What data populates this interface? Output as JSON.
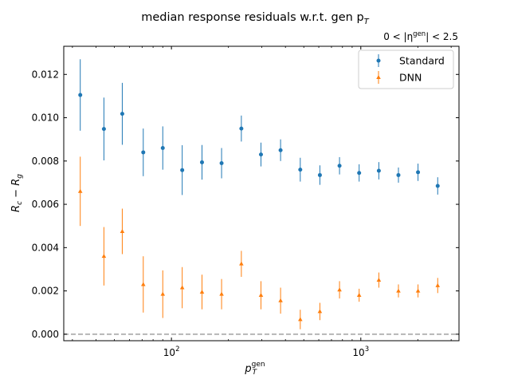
{
  "chart_data": {
    "type": "scatter",
    "title": "median response residuals w.r.t. gen p",
    "title_subscript": "T",
    "eta_range_label": {
      "prefix": "0 < |η",
      "superscript": "gen",
      "suffix": "| < 2.5"
    },
    "xlabel": {
      "base": "p",
      "superscript": "gen",
      "subscript": "T"
    },
    "ylabel": {
      "part1": "R",
      "sub1": "c",
      "minus": " − ",
      "part2": "R",
      "sub2": "g"
    },
    "x_scale": "log",
    "xlim": [
      27,
      3300
    ],
    "ylim": [
      -0.0003,
      0.0133
    ],
    "x_ticks": [
      {
        "value": 100,
        "base": "10",
        "exp": "2"
      },
      {
        "value": 1000,
        "base": "10",
        "exp": "3"
      }
    ],
    "y_ticks": [
      {
        "value": 0.0,
        "label": "0.000"
      },
      {
        "value": 0.002,
        "label": "0.002"
      },
      {
        "value": 0.004,
        "label": "0.004"
      },
      {
        "value": 0.006,
        "label": "0.006"
      },
      {
        "value": 0.008,
        "label": "0.008"
      },
      {
        "value": 0.01,
        "label": "0.010"
      },
      {
        "value": 0.012,
        "label": "0.012"
      }
    ],
    "reference_line": {
      "y": 0.0,
      "style": "dashed",
      "color": "#a0a0a0"
    },
    "legend_position": "top-right",
    "series": [
      {
        "name": "Standard",
        "marker": "circle",
        "color": "#1f77b4",
        "x": [
          33,
          44,
          55,
          71,
          90,
          114,
          145,
          184,
          234,
          297,
          377,
          479,
          608,
          772,
          980,
          1245,
          1580,
          2005,
          2547
        ],
        "y": [
          0.01105,
          0.00948,
          0.01018,
          0.0084,
          0.0086,
          0.00758,
          0.00794,
          0.0079,
          0.0095,
          0.0083,
          0.0085,
          0.0076,
          0.00735,
          0.00778,
          0.00745,
          0.00755,
          0.00735,
          0.00748,
          0.00685
        ],
        "err": [
          0.00165,
          0.00145,
          0.00143,
          0.0011,
          0.001,
          0.00115,
          0.0008,
          0.0007,
          0.0006,
          0.00055,
          0.0005,
          0.00055,
          0.00045,
          0.0004,
          0.0004,
          0.0004,
          0.00035,
          0.0004,
          0.0004
        ]
      },
      {
        "name": "DNN",
        "marker": "triangle",
        "color": "#ff7f0e",
        "x": [
          33,
          44,
          55,
          71,
          90,
          114,
          145,
          184,
          234,
          297,
          377,
          479,
          608,
          772,
          980,
          1245,
          1580,
          2005,
          2547
        ],
        "y": [
          0.0066,
          0.0036,
          0.00475,
          0.0023,
          0.00185,
          0.00215,
          0.00195,
          0.00185,
          0.00325,
          0.0018,
          0.00155,
          0.00068,
          0.00105,
          0.00205,
          0.0018,
          0.0025,
          0.002,
          0.002,
          0.00225
        ],
        "err": [
          0.0016,
          0.00135,
          0.00105,
          0.0013,
          0.0011,
          0.00095,
          0.0008,
          0.0007,
          0.0006,
          0.00065,
          0.0006,
          0.00045,
          0.0004,
          0.0004,
          0.0003,
          0.00035,
          0.0003,
          0.0003,
          0.00035
        ]
      }
    ]
  }
}
